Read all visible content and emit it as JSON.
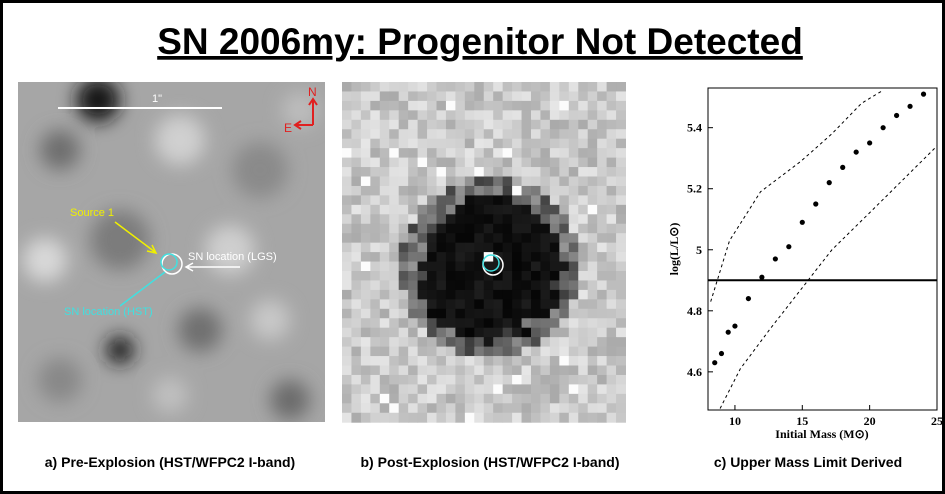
{
  "header": {
    "title": "SN 2006my:  Progenitor Not Detected"
  },
  "panels": [
    {
      "caption": "a) Pre-Explosion (HST/WFPC2 I-band)",
      "scale": "1\"",
      "north": "N",
      "east": "E",
      "source": "Source 1",
      "lgs": "SN location (LGS)",
      "hst": "SN location (HST)"
    },
    {
      "caption": "b) Post-Explosion (HST/WFPC2 I-band)"
    },
    {
      "caption": "c) Upper Mass Limit Derived"
    }
  ],
  "chart_data": {
    "type": "scatter",
    "xlabel": "Initial Mass (M⊙)",
    "ylabel": "log(L/L⊙)",
    "xlim": [
      8,
      25
    ],
    "ylim": [
      4.475,
      5.53
    ],
    "xticks": [
      10,
      15,
      20,
      25
    ],
    "yticks": [
      4.6,
      4.8,
      5.0,
      5.2,
      5.4
    ],
    "x": [
      8.5,
      9,
      9.5,
      10,
      11,
      12,
      13,
      14,
      15,
      16,
      17,
      18,
      19,
      20,
      21,
      22,
      23,
      24
    ],
    "values": [
      4.63,
      4.66,
      4.73,
      4.75,
      4.84,
      4.91,
      4.97,
      5.01,
      5.09,
      5.15,
      5.22,
      5.27,
      5.32,
      5.35,
      5.4,
      5.44,
      5.47,
      5.51
    ],
    "bounds": [
      {
        "x": [
          8.2,
          9.6,
          11.9,
          14.9,
          17.2,
          19.4,
          20.9
        ],
        "values": [
          4.83,
          5.03,
          5.19,
          5.29,
          5.38,
          5.48,
          5.52
        ]
      },
      {
        "x": [
          8.9,
          10.4,
          12.6,
          14.9,
          17.2,
          20.2,
          25
        ],
        "values": [
          4.48,
          4.61,
          4.74,
          4.87,
          5.0,
          5.13,
          5.34
        ]
      }
    ],
    "limit": 4.9,
    "color": "#000000"
  }
}
